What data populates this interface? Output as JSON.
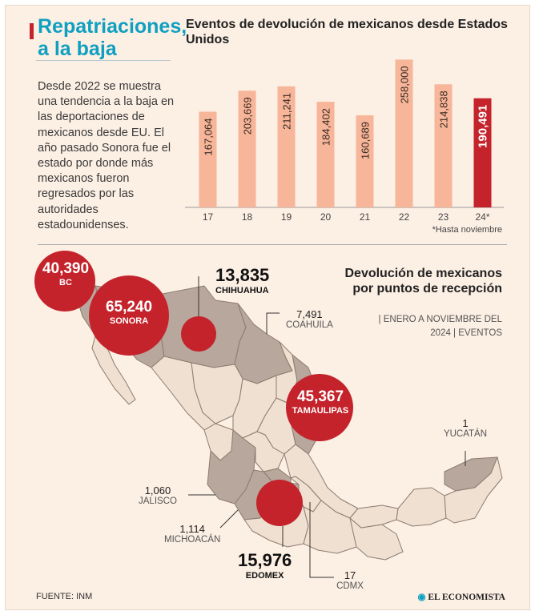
{
  "headline": {
    "line1": "Repatriaciones,",
    "line2": "a la baja"
  },
  "intro_text": "Desde 2022 se muestra una tendencia a la baja en las deportaciones de mexicanos desde EU. El año pasado Sonora fue el estado por donde más mexicanos fueron regresados por las autoridades estadounidenses.",
  "chart_data": [
    {
      "type": "bar",
      "title": "Eventos de devolución de mexicanos desde Estados Unidos",
      "categories": [
        "17",
        "18",
        "19",
        "20",
        "21",
        "22",
        "23",
        "24*"
      ],
      "values": [
        167064,
        203669,
        211241,
        184402,
        160689,
        258000,
        214838,
        190491
      ],
      "data_labels": [
        "167,064",
        "203,669",
        "211,241",
        "184,402",
        "160,689",
        "258,000",
        "214,838",
        "190,491"
      ],
      "highlight_index": 7,
      "colors": {
        "bar": "#f7b59a",
        "highlight": "#c4232b"
      },
      "ylim": [
        0,
        260000
      ],
      "grid": false,
      "footnote": "*Hasta noviembre"
    }
  ],
  "map": {
    "title": "Devolución de mexicanos por puntos de recepción",
    "subtitle_line1": "| ENERO A NOVIEMBRE DEL",
    "subtitle_line2": "2024 | EVENTOS",
    "colors": {
      "circle": "#c4232b",
      "highlighted_state": "#b8a79c",
      "state": "#efe0d2",
      "border": "#8c7c70"
    },
    "points": {
      "bc": {
        "value": "40,390",
        "state": "BC"
      },
      "sonora": {
        "value": "65,240",
        "state": "SONORA"
      },
      "chihuahua": {
        "value": "13,835",
        "state": "CHIHUAHUA"
      },
      "coahuila": {
        "value": "7,491",
        "state": "COAHUILA"
      },
      "tamaulipas": {
        "value": "45,367",
        "state": "TAMAULIPAS"
      },
      "yucatan": {
        "value": "1",
        "state": "YUCATÁN"
      },
      "jalisco": {
        "value": "1,060",
        "state": "JALISCO"
      },
      "michoacan": {
        "value": "1,114",
        "state": "MICHOACÁN"
      },
      "edomex": {
        "value": "15,976",
        "state": "EDOMEX"
      },
      "cdmx": {
        "value": "17",
        "state": "CDMX"
      }
    }
  },
  "source": "FUENTE: INM",
  "brand": "EL ECONOMISTA"
}
